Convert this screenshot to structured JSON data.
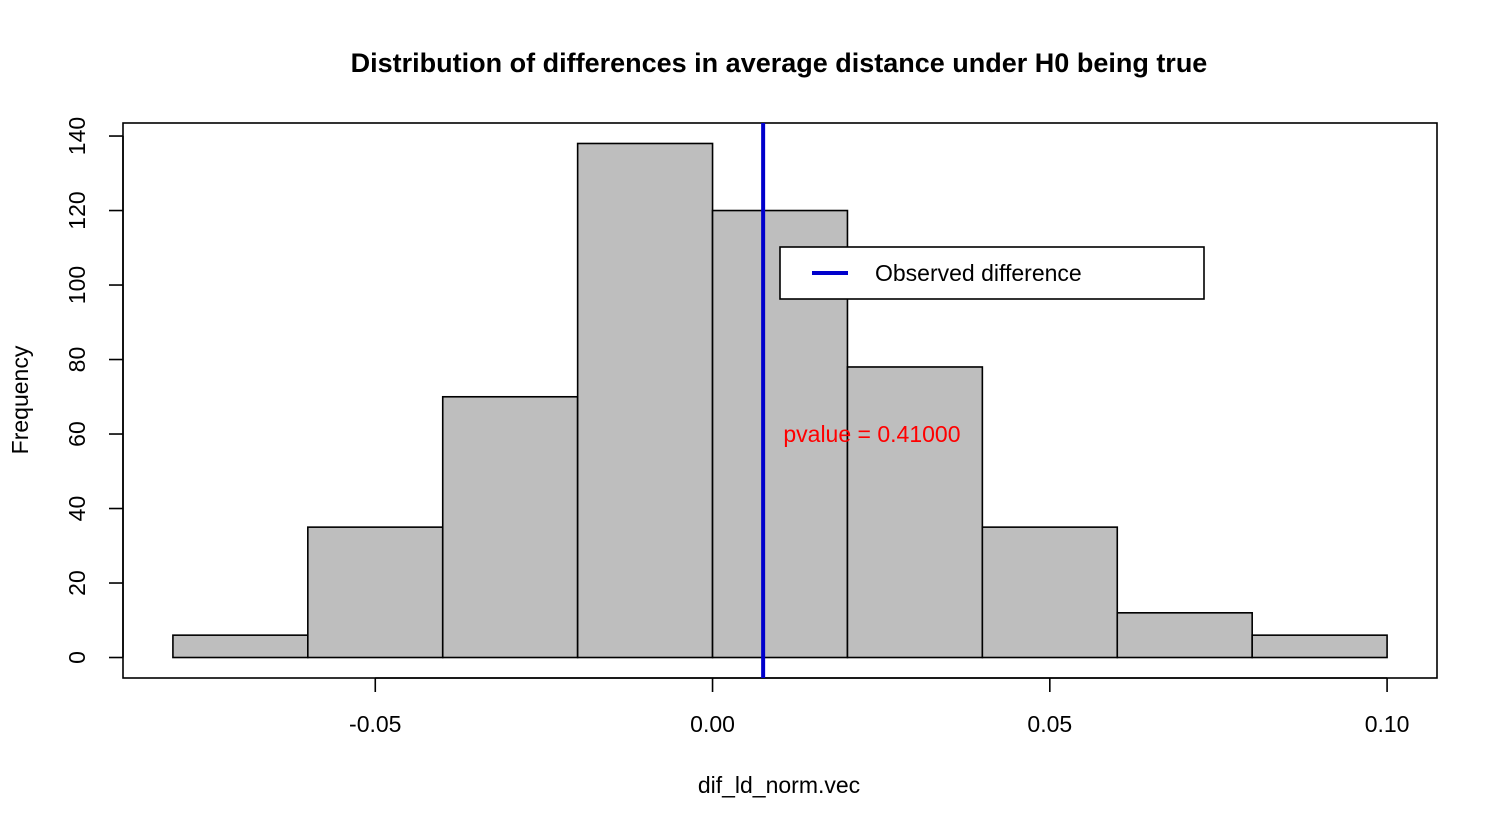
{
  "chart_data": {
    "type": "bar",
    "subtype": "histogram",
    "title": "Distribution of differences in average distance under H0 being true",
    "xlabel": "dif_ld_norm.vec",
    "ylabel": "Frequency",
    "bins": [
      {
        "x0": -0.08,
        "x1": -0.06,
        "count": 6
      },
      {
        "x0": -0.06,
        "x1": -0.04,
        "count": 35
      },
      {
        "x0": -0.04,
        "x1": -0.02,
        "count": 70
      },
      {
        "x0": -0.02,
        "x1": 0.0,
        "count": 138
      },
      {
        "x0": 0.0,
        "x1": 0.02,
        "count": 120
      },
      {
        "x0": 0.02,
        "x1": 0.04,
        "count": 78
      },
      {
        "x0": 0.04,
        "x1": 0.06,
        "count": 35
      },
      {
        "x0": 0.06,
        "x1": 0.08,
        "count": 12
      },
      {
        "x0": 0.08,
        "x1": 0.1,
        "count": 6
      }
    ],
    "xlim": [
      -0.0874,
      0.1074
    ],
    "ylim": [
      -5.5,
      143.5
    ],
    "x_ticks": [
      {
        "value": -0.05,
        "label": "-0.05"
      },
      {
        "value": 0.0,
        "label": "0.00"
      },
      {
        "value": 0.05,
        "label": "0.05"
      },
      {
        "value": 0.1,
        "label": "0.10"
      }
    ],
    "y_ticks": [
      {
        "value": 0,
        "label": "0"
      },
      {
        "value": 20,
        "label": "20"
      },
      {
        "value": 40,
        "label": "40"
      },
      {
        "value": 60,
        "label": "60"
      },
      {
        "value": 80,
        "label": "80"
      },
      {
        "value": 100,
        "label": "100"
      },
      {
        "value": 120,
        "label": "120"
      },
      {
        "value": 140,
        "label": "140"
      }
    ],
    "observed_line": {
      "x": 0.0075,
      "color": "#0000cc"
    },
    "legend": {
      "entries": [
        {
          "label": "Observed difference",
          "color": "#0000cc"
        }
      ],
      "placement": "top-right"
    },
    "annotation": {
      "label": "pvalue = ",
      "value": "0.41000",
      "x": 0.0105,
      "y": 60,
      "color": "#ff0000"
    },
    "bar_fill": "#bebebe",
    "grid": false
  }
}
